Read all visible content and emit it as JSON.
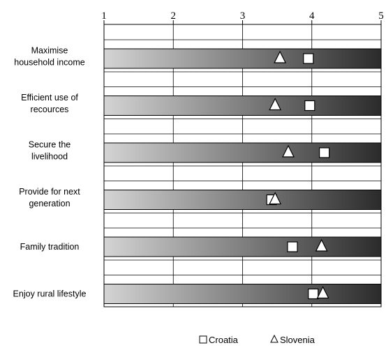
{
  "chart_data": {
    "type": "bar",
    "title": "",
    "xlim": [
      1,
      5
    ],
    "x_ticks": [
      "1",
      "2",
      "3",
      "4",
      "5"
    ],
    "grid": true,
    "legend_position": "bottom-center",
    "categories": [
      [
        "Maximise",
        "household income"
      ],
      [
        "Efficient use of",
        "recources"
      ],
      [
        "Secure the",
        "livelihood"
      ],
      [
        "Provide for next",
        "generation"
      ],
      [
        "Family tradition"
      ],
      [
        "Enjoy rural lifestyle"
      ]
    ],
    "series": [
      {
        "name": "Croatia",
        "marker": "square",
        "values": [
          3.95,
          3.97,
          4.18,
          3.42,
          3.72,
          4.02
        ]
      },
      {
        "name": "Slovenia",
        "marker": "triangle",
        "values": [
          3.54,
          3.47,
          3.66,
          3.47,
          4.14,
          4.16
        ]
      }
    ],
    "bar_gradient": [
      "#d4d4d4",
      "#2b2b2b"
    ]
  }
}
